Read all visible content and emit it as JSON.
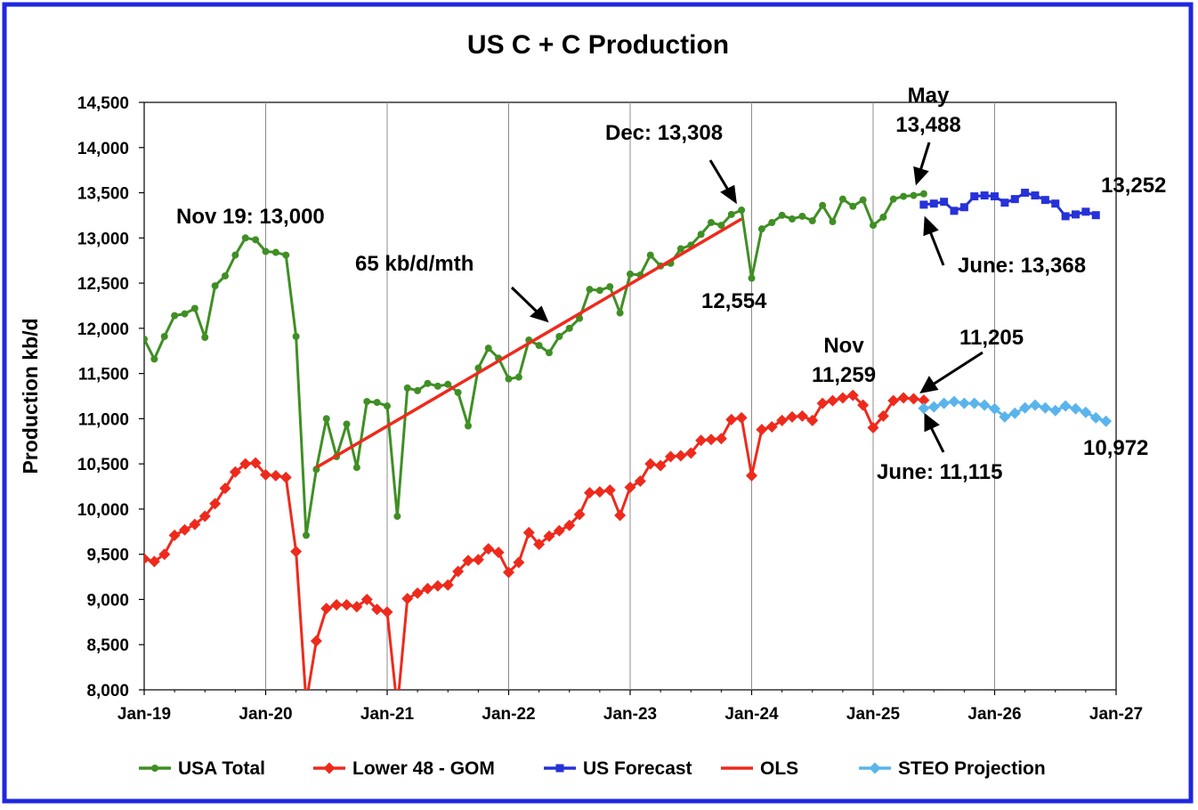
{
  "chart_data": {
    "type": "line",
    "title": "US C + C Production",
    "xlabel": "",
    "ylabel": "Production kb/d",
    "ylim": [
      8000,
      14500
    ],
    "yticks": [
      8000,
      8500,
      9000,
      9500,
      10000,
      10500,
      11000,
      11500,
      12000,
      12500,
      13000,
      13500,
      14000,
      14500
    ],
    "ytick_labels": [
      "8,000",
      "8,500",
      "9,000",
      "9,500",
      "10,000",
      "10,500",
      "11,000",
      "11,500",
      "12,000",
      "12,500",
      "13,000",
      "13,500",
      "14,000",
      "14,500"
    ],
    "xticks": [
      "2019-01",
      "2020-01",
      "2021-01",
      "2022-01",
      "2023-01",
      "2024-01",
      "2025-01",
      "2026-01",
      "2027-01"
    ],
    "xtick_labels": [
      "Jan-19",
      "Jan-20",
      "Jan-21",
      "Jan-22",
      "Jan-23",
      "Jan-24",
      "Jan-25",
      "Jan-26",
      "Jan-27"
    ],
    "xlim": [
      "2019-01",
      "2027-01"
    ],
    "grid": "vertical major gridlines",
    "legend_position": "bottom",
    "series": [
      {
        "name": "USA Total",
        "color": "#3f8f24",
        "marker": "circle",
        "x_start": "2019-01",
        "values": [
          11880,
          11660,
          11910,
          12140,
          12160,
          12220,
          11900,
          12470,
          12580,
          12810,
          13000,
          12980,
          12850,
          12840,
          12810,
          11910,
          9710,
          10440,
          11000,
          10580,
          10940,
          10460,
          11190,
          11180,
          11140,
          9920,
          11340,
          11310,
          11390,
          11360,
          11380,
          11290,
          10920,
          11560,
          11780,
          11670,
          11440,
          11460,
          11870,
          11810,
          11730,
          11910,
          12000,
          12110,
          12430,
          12420,
          12460,
          12170,
          12600,
          12590,
          12810,
          12690,
          12720,
          12880,
          12920,
          13040,
          13170,
          13140,
          13260,
          13308,
          12554,
          13100,
          13170,
          13250,
          13210,
          13240,
          13190,
          13360,
          13180,
          13430,
          13350,
          13420,
          13140,
          13230,
          13430,
          13460,
          13470,
          13488
        ]
      },
      {
        "name": "Lower 48 - GOM",
        "color": "#ee2a1c",
        "marker": "diamond",
        "x_start": "2019-01",
        "values": [
          9450,
          9420,
          9500,
          9710,
          9770,
          9830,
          9920,
          10060,
          10230,
          10410,
          10500,
          10510,
          10380,
          10370,
          10350,
          9530,
          7860,
          8540,
          8900,
          8940,
          8940,
          8920,
          9000,
          8890,
          8860,
          7800,
          9010,
          9070,
          9120,
          9150,
          9160,
          9310,
          9430,
          9440,
          9560,
          9520,
          9300,
          9410,
          9740,
          9610,
          9700,
          9760,
          9820,
          9940,
          10180,
          10190,
          10210,
          9930,
          10240,
          10310,
          10500,
          10480,
          10580,
          10590,
          10620,
          10760,
          10770,
          10780,
          10990,
          11010,
          10370,
          10880,
          10910,
          10980,
          11020,
          11030,
          10980,
          11170,
          11200,
          11230,
          11259,
          11150,
          10900,
          11030,
          11200,
          11230,
          11220,
          11205
        ]
      },
      {
        "name": "US Forecast",
        "color": "#2631d8",
        "marker": "square",
        "x_start": "2025-06",
        "values": [
          13368,
          13380,
          13400,
          13300,
          13340,
          13460,
          13470,
          13460,
          13390,
          13430,
          13500,
          13470,
          13420,
          13380,
          13240,
          13260,
          13290,
          13252
        ]
      },
      {
        "name": "OLS",
        "color": "#ee2a1c",
        "marker": "none",
        "points": [
          {
            "x": "2020-06",
            "y": 10460
          },
          {
            "x": "2023-12",
            "y": 13210
          }
        ]
      },
      {
        "name": "STEO Projection",
        "color": "#5ab4ec",
        "marker": "diamond",
        "x_start": "2025-06",
        "values": [
          11115,
          11130,
          11170,
          11190,
          11170,
          11170,
          11150,
          11110,
          11020,
          11060,
          11120,
          11150,
          11120,
          11090,
          11140,
          11110,
          11070,
          11010,
          10972
        ]
      }
    ],
    "annotations": [
      {
        "text": "Nov 19: 13,000"
      },
      {
        "text": "65 kb/d/mth"
      },
      {
        "text": "Dec: 13,308"
      },
      {
        "text": "12,554"
      },
      {
        "text": "May"
      },
      {
        "text": "13,488"
      },
      {
        "text": "13,252"
      },
      {
        "text": "June: 13,368"
      },
      {
        "text": "Nov"
      },
      {
        "text": "11,259"
      },
      {
        "text": "11,205"
      },
      {
        "text": "June: 11,115"
      },
      {
        "text": "10,972"
      }
    ]
  }
}
